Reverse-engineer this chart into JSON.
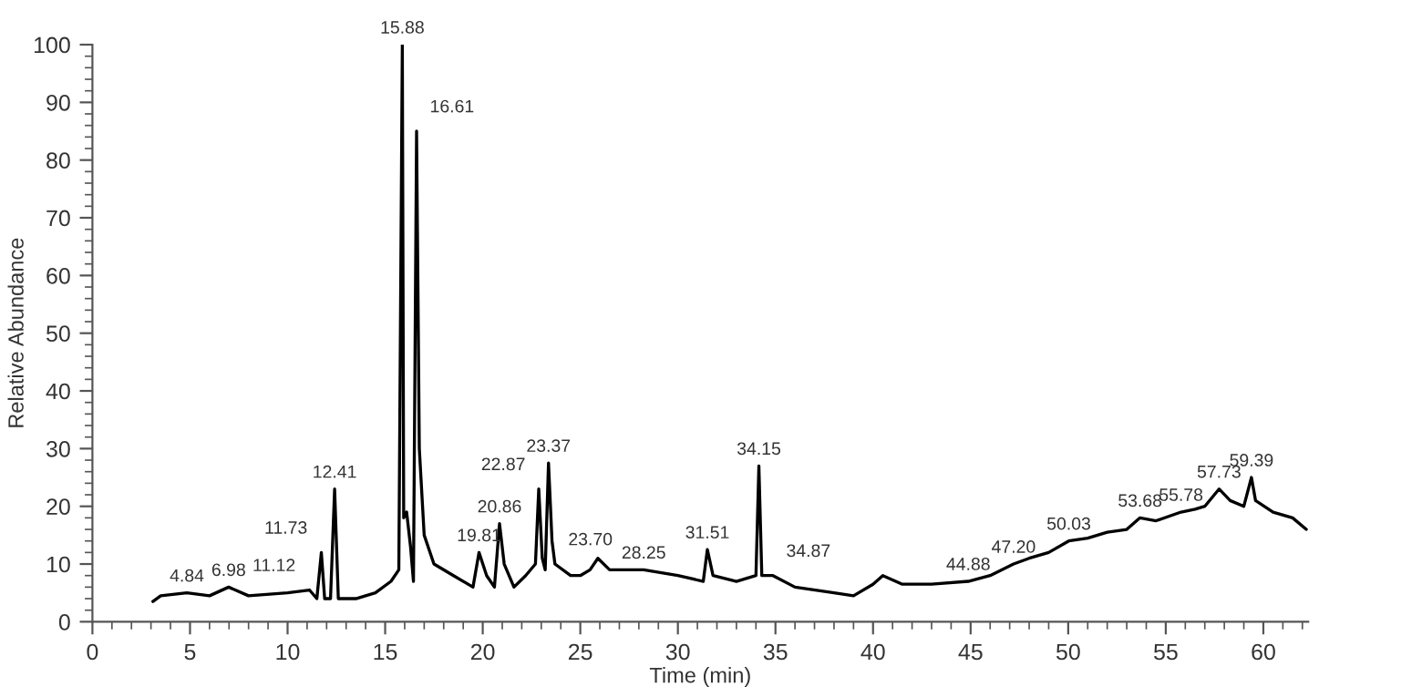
{
  "chart_data": {
    "type": "line",
    "xlabel": "Time (min)",
    "ylabel": "Relative Abundance",
    "xlim": [
      0,
      62.3
    ],
    "ylim": [
      0,
      100
    ],
    "xticks": [
      0,
      5,
      10,
      15,
      20,
      25,
      30,
      35,
      40,
      45,
      50,
      55,
      60
    ],
    "yticks": [
      0,
      10,
      20,
      30,
      40,
      50,
      60,
      70,
      80,
      90,
      100
    ],
    "grid": false,
    "legend": false,
    "marker": "none",
    "line_style": "solid",
    "series": [
      {
        "color": "#000000",
        "x": [
          3.1,
          3.5,
          4.84,
          6,
          6.98,
          8,
          10,
          11.12,
          11.5,
          11.73,
          11.9,
          12.2,
          12.41,
          12.6,
          13.5,
          14.5,
          15.3,
          15.7,
          15.88,
          15.95,
          16.1,
          16.3,
          16.45,
          16.61,
          16.75,
          17,
          17.5,
          18.5,
          19.5,
          19.81,
          20.2,
          20.6,
          20.86,
          21.1,
          21.6,
          22.2,
          22.7,
          22.87,
          23.05,
          23.2,
          23.37,
          23.55,
          23.7,
          24.5,
          25,
          25.5,
          25.9,
          26.5,
          28.25,
          30,
          31.3,
          31.51,
          31.8,
          33,
          34,
          34.15,
          34.3,
          34.87,
          36,
          38,
          39,
          40,
          40.5,
          41.5,
          43,
          44.88,
          46,
          47.2,
          48,
          49,
          50.03,
          51,
          52,
          53,
          53.68,
          54.5,
          55.78,
          56.5,
          57,
          57.73,
          58.3,
          59,
          59.39,
          59.6,
          60.5,
          61.5,
          62.2
        ],
        "values": [
          3.5,
          4.5,
          5,
          4.5,
          6,
          4.5,
          5,
          5.5,
          4,
          12,
          4,
          4,
          23,
          4,
          4,
          5,
          7,
          9,
          100,
          18,
          19,
          13,
          7,
          85,
          30,
          15,
          10,
          8,
          6,
          12,
          8,
          6,
          17,
          10,
          6,
          8,
          10,
          23,
          11,
          9,
          27.5,
          14,
          10,
          8,
          8,
          9,
          11,
          9,
          9,
          8,
          7,
          12.5,
          8,
          7,
          8,
          27,
          8,
          8,
          6,
          5,
          4.5,
          6.5,
          8,
          6.5,
          6.5,
          7,
          8,
          10,
          11,
          12,
          14,
          14.5,
          15.5,
          16,
          18,
          17.5,
          19,
          19.5,
          20,
          23,
          21,
          20,
          25,
          21,
          19,
          18,
          16
        ]
      }
    ],
    "annotations": [
      {
        "text": "4.84",
        "x": 4.84,
        "y": 5
      },
      {
        "text": "6.98",
        "x": 6.98,
        "y": 6
      },
      {
        "text": "11.12",
        "x": 11.12,
        "y": 5.5
      },
      {
        "text": "11.73",
        "x": 11.73,
        "y": 12
      },
      {
        "text": "12.41",
        "x": 12.41,
        "y": 23
      },
      {
        "text": "15.88",
        "x": 15.88,
        "y": 100
      },
      {
        "text": "16.61",
        "x": 16.61,
        "y": 85
      },
      {
        "text": "19.81",
        "x": 19.81,
        "y": 12
      },
      {
        "text": "20.86",
        "x": 20.86,
        "y": 17
      },
      {
        "text": "22.87",
        "x": 22.87,
        "y": 23
      },
      {
        "text": "23.37",
        "x": 23.37,
        "y": 27.5
      },
      {
        "text": "23.70",
        "x": 23.7,
        "y": 10
      },
      {
        "text": "28.25",
        "x": 28.25,
        "y": 9
      },
      {
        "text": "31.51",
        "x": 31.51,
        "y": 12.5
      },
      {
        "text": "34.15",
        "x": 34.15,
        "y": 27
      },
      {
        "text": "34.87",
        "x": 34.87,
        "y": 8
      },
      {
        "text": "44.88",
        "x": 44.88,
        "y": 7
      },
      {
        "text": "47.20",
        "x": 47.2,
        "y": 10
      },
      {
        "text": "50.03",
        "x": 50.03,
        "y": 14
      },
      {
        "text": "53.68",
        "x": 53.68,
        "y": 18
      },
      {
        "text": "55.78",
        "x": 55.78,
        "y": 19
      },
      {
        "text": "57.73",
        "x": 57.73,
        "y": 23
      },
      {
        "text": "59.39",
        "x": 59.39,
        "y": 25
      }
    ]
  }
}
